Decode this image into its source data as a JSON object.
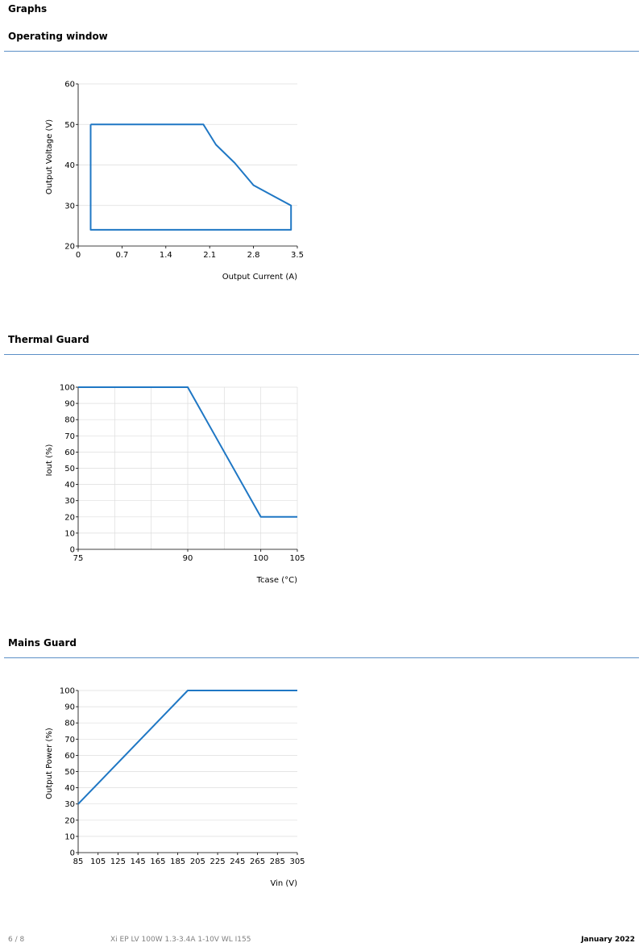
{
  "page_heading": "Graphs",
  "sections": [
    {
      "title": "Operating window"
    },
    {
      "title": "Thermal Guard"
    },
    {
      "title": "Mains Guard"
    }
  ],
  "colors": {
    "line": "#1f77c4",
    "rule": "#5b8fc7",
    "grid": "#dddddd"
  },
  "chart_data": [
    {
      "type": "line",
      "xlabel": "Output Current (A)",
      "ylabel": "Output Voltage (V)",
      "xlim": [
        0,
        3.5
      ],
      "ylim": [
        20,
        60
      ],
      "xticks": [
        0,
        0.7,
        1.4,
        2.1,
        2.8,
        3.5
      ],
      "yticks": [
        20,
        30,
        40,
        50,
        60
      ],
      "grid": "horizontal",
      "series": [
        {
          "x": [
            0.2,
            2.0,
            2.2,
            2.5,
            2.8,
            3.1,
            3.4,
            3.4,
            0.2,
            0.2
          ],
          "y": [
            50,
            50,
            45,
            40.5,
            35,
            32.5,
            30,
            24,
            24,
            50
          ]
        }
      ]
    },
    {
      "type": "line",
      "xlabel": "Tcase (°C)",
      "ylabel": "Iout (%)",
      "xlim": [
        75,
        105
      ],
      "ylim": [
        0,
        100
      ],
      "xticks": [
        75,
        90,
        100,
        105
      ],
      "yticks": [
        0,
        10,
        20,
        30,
        40,
        50,
        60,
        70,
        80,
        90,
        100
      ],
      "grid": "both",
      "series": [
        {
          "x": [
            75,
            90,
            100,
            105
          ],
          "y": [
            100,
            100,
            20,
            20
          ]
        }
      ]
    },
    {
      "type": "line",
      "xlabel": "Vin (V)",
      "ylabel": "Output Power (%)",
      "xlim": [
        85,
        305
      ],
      "ylim": [
        0,
        100
      ],
      "xticks": [
        85,
        105,
        125,
        145,
        165,
        185,
        205,
        225,
        245,
        265,
        285,
        305
      ],
      "yticks": [
        0,
        10,
        20,
        30,
        40,
        50,
        60,
        70,
        80,
        90,
        100
      ],
      "grid": "horizontal",
      "series": [
        {
          "x": [
            85,
            195,
            305
          ],
          "y": [
            30,
            100,
            100
          ]
        }
      ]
    }
  ],
  "footer": {
    "page": "6 / 8",
    "product": "Xi EP LV 100W 1.3-3.4A 1-10V WL I155",
    "date": "January 2022"
  }
}
